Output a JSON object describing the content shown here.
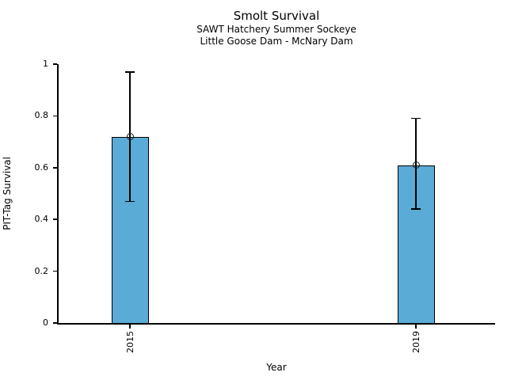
{
  "chart_data": {
    "type": "bar",
    "title": "Smolt Survival",
    "subtitle1": "SAWT Hatchery Summer Sockeye",
    "subtitle2": "Little Goose Dam - McNary Dam",
    "xlabel": "Year",
    "ylabel": "PIT-Tag Survival",
    "categories": [
      "2015",
      "2019"
    ],
    "values": [
      0.72,
      0.61
    ],
    "error_low": [
      0.47,
      0.44
    ],
    "error_high": [
      0.97,
      0.79
    ],
    "ylim": [
      0,
      1
    ],
    "yticks": [
      0,
      0.2,
      0.4,
      0.6,
      0.8,
      1
    ],
    "ytick_labels": [
      "0",
      "0.2",
      "0.4",
      "0.6",
      "0.8",
      "1"
    ],
    "marker": "open-circle",
    "colors": {
      "bar_fill": "#5aabd6",
      "bar_border": "#000000",
      "axis": "#000000",
      "error_bar": "#000000",
      "marker_ring": "#1a1a1a",
      "text": "#000000",
      "background": "#ffffff"
    },
    "legend": "none",
    "grid": "off"
  }
}
